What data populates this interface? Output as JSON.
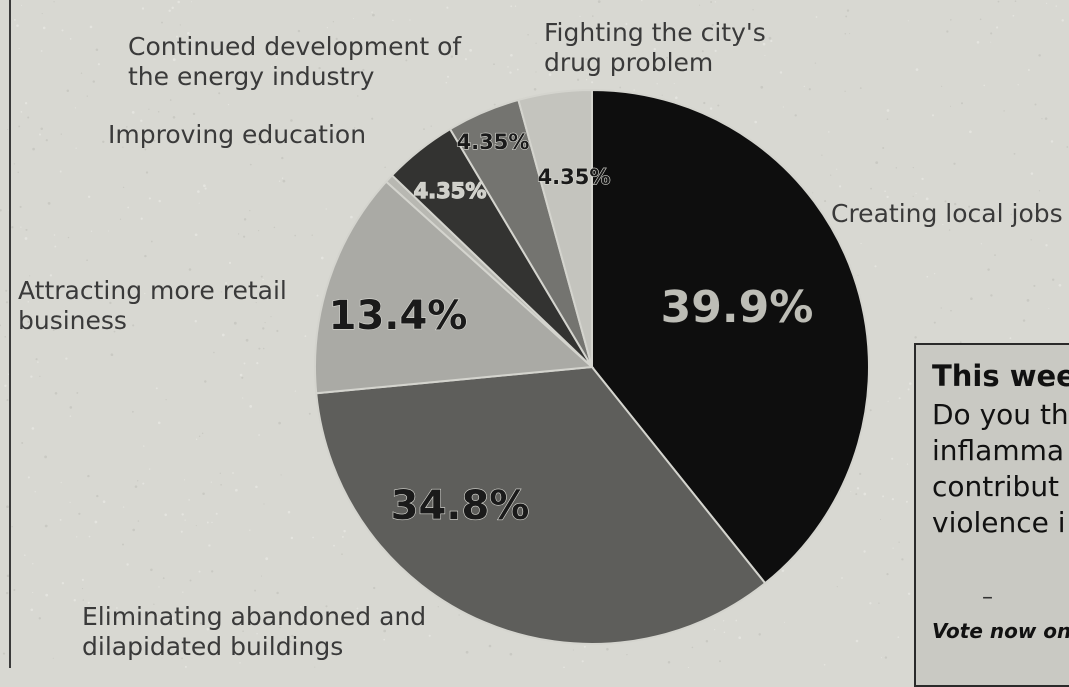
{
  "chart_data": {
    "type": "pie",
    "title": "",
    "slices": [
      {
        "label": "Creating local jobs",
        "value": 39.9,
        "display": "39.9%",
        "color": "#0e0e0e",
        "text_color": "#bdbdb6"
      },
      {
        "label": "Eliminating abandoned and\ndilapidated buildings",
        "value": 34.8,
        "display": "34.8%",
        "color": "#5e5e5b",
        "text_color": "#1a1a1a"
      },
      {
        "label": "Attracting more retail\nbusiness",
        "value": 13.4,
        "display": "13.4%",
        "color": "#aaaaa5",
        "text_color": "#1a1a1a"
      },
      {
        "label": "Improving education",
        "value": 0.5,
        "display": "",
        "color": "#b8b8b2",
        "text_color": "#1a1a1a"
      },
      {
        "label": "Continued development of\nthe energy industry",
        "value": 4.35,
        "display": "4.35%",
        "color": "#333331",
        "text_color": "#d0d0ca"
      },
      {
        "label": "Fighting the city's\ndrug problem",
        "value": 4.35,
        "display": "4.35%",
        "color": "#747470",
        "text_color": "#1a1a1a"
      },
      {
        "label": "",
        "value": 4.35,
        "display": "4.35%",
        "color": "#c4c4be",
        "text_color": "#1a1a1a"
      }
    ]
  },
  "labels": {
    "creating_jobs": "Creating local jobs",
    "eliminating": "Eliminating abandoned and\ndilapidated buildings",
    "retail": "Attracting more retail\nbusiness",
    "education": "Improving education",
    "energy": "Continued development of\nthe energy industry",
    "drug": "Fighting the city's\ndrug problem"
  },
  "sidebar": {
    "heading": "This weel",
    "question": "Do you th\ninflamma\ncontribut\nviolence i",
    "dash": "–",
    "vote": "Vote now on"
  }
}
